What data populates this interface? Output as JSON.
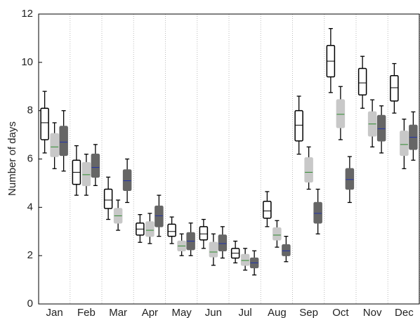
{
  "chart_data": {
    "type": "box",
    "y_label": "Number of days",
    "categories": [
      "Jan",
      "Feb",
      "Mar",
      "Apr",
      "May",
      "Jun",
      "Jul",
      "Aug",
      "Sep",
      "Oct",
      "Nov",
      "Dec"
    ],
    "ylim": [
      0,
      12
    ],
    "yticks": [
      0,
      2,
      4,
      6,
      8,
      10,
      12
    ],
    "series": [
      {
        "color": "#ffffff",
        "median_color": "#000000",
        "boxes": [
          {
            "low": 6.25,
            "q1": 6.8,
            "median": 7.5,
            "q3": 8.1,
            "high": 8.8
          },
          {
            "low": 4.5,
            "q1": 4.95,
            "median": 5.45,
            "q3": 5.95,
            "high": 6.55
          },
          {
            "low": 3.5,
            "q1": 3.95,
            "median": 4.3,
            "q3": 4.75,
            "high": 5.25
          },
          {
            "low": 2.55,
            "q1": 2.85,
            "median": 3.1,
            "q3": 3.35,
            "high": 3.7
          },
          {
            "low": 2.5,
            "q1": 2.8,
            "median": 3.0,
            "q3": 3.3,
            "high": 3.6
          },
          {
            "low": 2.3,
            "q1": 2.65,
            "median": 2.9,
            "q3": 3.2,
            "high": 3.5
          },
          {
            "low": 1.7,
            "q1": 1.9,
            "median": 2.1,
            "q3": 2.3,
            "high": 2.6
          },
          {
            "low": 3.2,
            "q1": 3.55,
            "median": 3.85,
            "q3": 4.25,
            "high": 4.65
          },
          {
            "low": 6.2,
            "q1": 6.75,
            "median": 7.4,
            "q3": 8.0,
            "high": 8.6
          },
          {
            "low": 8.75,
            "q1": 9.4,
            "median": 10.05,
            "q3": 10.7,
            "high": 11.4
          },
          {
            "low": 8.1,
            "q1": 8.65,
            "median": 9.15,
            "q3": 9.75,
            "high": 10.25
          },
          {
            "low": 7.9,
            "q1": 8.4,
            "median": 8.95,
            "q3": 9.45,
            "high": 9.95
          }
        ]
      },
      {
        "color": "#c8c8c8",
        "median_color": "#2e8b2e",
        "boxes": [
          {
            "low": 5.6,
            "q1": 6.1,
            "median": 6.5,
            "q3": 7.05,
            "high": 7.5
          },
          {
            "low": 4.5,
            "q1": 4.9,
            "median": 5.35,
            "q3": 5.85,
            "high": 6.2
          },
          {
            "low": 3.05,
            "q1": 3.35,
            "median": 3.65,
            "q3": 3.95,
            "high": 4.3
          },
          {
            "low": 2.5,
            "q1": 2.8,
            "median": 3.05,
            "q3": 3.4,
            "high": 3.75
          },
          {
            "low": 2.0,
            "q1": 2.2,
            "median": 2.4,
            "q3": 2.6,
            "high": 2.9
          },
          {
            "low": 1.6,
            "q1": 1.95,
            "median": 2.15,
            "q3": 2.55,
            "high": 2.9
          },
          {
            "low": 1.4,
            "q1": 1.6,
            "median": 1.8,
            "q3": 2.05,
            "high": 2.3
          },
          {
            "low": 2.35,
            "q1": 2.65,
            "median": 2.85,
            "q3": 3.15,
            "high": 3.45
          },
          {
            "low": 4.75,
            "q1": 5.05,
            "median": 5.45,
            "q3": 6.05,
            "high": 6.5
          },
          {
            "low": 6.8,
            "q1": 7.3,
            "median": 7.85,
            "q3": 8.45,
            "high": 9.0
          },
          {
            "low": 6.5,
            "q1": 6.95,
            "median": 7.45,
            "q3": 7.95,
            "high": 8.45
          },
          {
            "low": 5.6,
            "q1": 6.15,
            "median": 6.6,
            "q3": 7.15,
            "high": 7.65
          }
        ]
      },
      {
        "color": "#666666",
        "median_color": "#2233aa",
        "boxes": [
          {
            "low": 5.5,
            "q1": 6.15,
            "median": 6.7,
            "q3": 7.35,
            "high": 8.0
          },
          {
            "low": 4.9,
            "q1": 5.25,
            "median": 5.65,
            "q3": 6.2,
            "high": 6.6
          },
          {
            "low": 4.2,
            "q1": 4.7,
            "median": 5.1,
            "q3": 5.55,
            "high": 6.0
          },
          {
            "low": 2.8,
            "q1": 3.2,
            "median": 3.65,
            "q3": 4.05,
            "high": 4.5
          },
          {
            "low": 2.0,
            "q1": 2.25,
            "median": 2.6,
            "q3": 2.95,
            "high": 3.35
          },
          {
            "low": 1.9,
            "q1": 2.2,
            "median": 2.5,
            "q3": 2.85,
            "high": 3.2
          },
          {
            "low": 1.2,
            "q1": 1.5,
            "median": 1.7,
            "q3": 1.9,
            "high": 2.2
          },
          {
            "low": 1.75,
            "q1": 2.0,
            "median": 2.2,
            "q3": 2.45,
            "high": 2.8
          },
          {
            "low": 2.9,
            "q1": 3.35,
            "median": 3.75,
            "q3": 4.2,
            "high": 4.75
          },
          {
            "low": 4.2,
            "q1": 4.75,
            "median": 5.15,
            "q3": 5.6,
            "high": 6.1
          },
          {
            "low": 6.25,
            "q1": 6.75,
            "median": 7.25,
            "q3": 7.8,
            "high": 8.2
          },
          {
            "low": 5.95,
            "q1": 6.4,
            "median": 6.9,
            "q3": 7.4,
            "high": 7.95
          }
        ]
      }
    ]
  }
}
